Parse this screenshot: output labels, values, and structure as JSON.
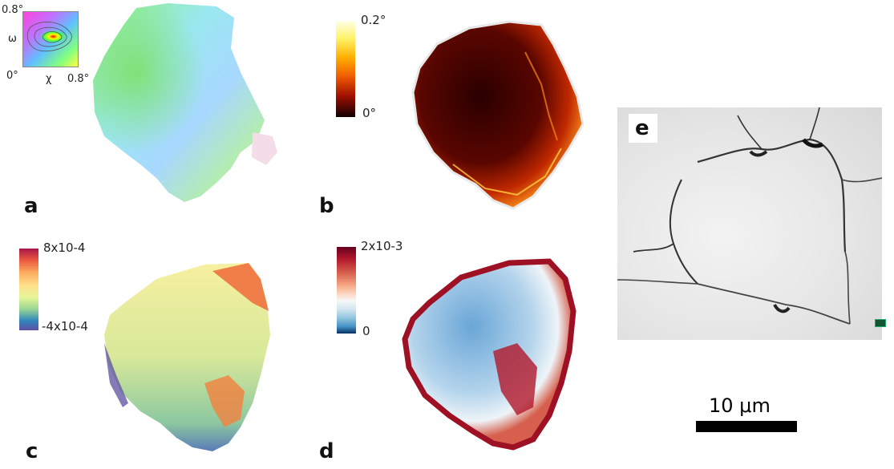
{
  "panels": {
    "a": {
      "letter": "a",
      "inset": {
        "y_axis_label": "ω",
        "x_axis_label": "χ",
        "top_tick": "0.8°",
        "origin_tick": "0°",
        "right_tick": "0.8°"
      }
    },
    "b": {
      "letter": "b",
      "colorbar": {
        "max_label": "0.2°",
        "min_label": "0°",
        "colormap": "black-red-yellow-white"
      }
    },
    "c": {
      "letter": "c",
      "colorbar": {
        "max_label": "8x10-4",
        "min_label": "-4x10-4",
        "colormap": "spectral"
      }
    },
    "d": {
      "letter": "d",
      "colorbar": {
        "max_label": "2x10-3",
        "min_label": "0",
        "colormap": "red-white-blue"
      }
    },
    "e": {
      "letter": "e",
      "scale_bar": {
        "label": "10 μm"
      }
    }
  },
  "colors": {
    "c_map_fill": "#d8e89a",
    "d_map_fill": "#9cc6e4",
    "b_map_fill": "#3a0400"
  }
}
